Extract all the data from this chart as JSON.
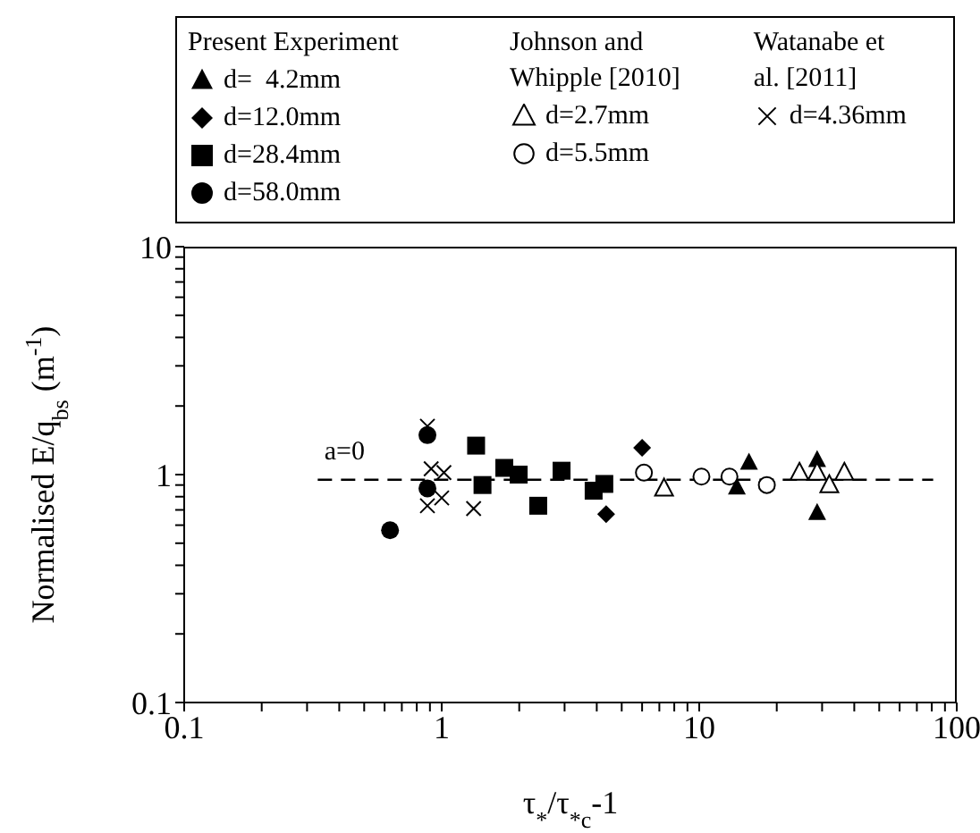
{
  "chart_data": {
    "type": "scatter",
    "xlabel": "τ$_{*}$/τ$_{*c}$-1",
    "ylabel": "Normalised E/q$_{bs}$ (m$^{-1}$)",
    "log": "xy",
    "legend": "top",
    "xlim": [
      0.1,
      100
    ],
    "ylim": [
      0.1,
      10
    ],
    "xticks": [
      0.1,
      {
        "value": 0.2,
        "label": null
      },
      {
        "value": 0.3,
        "label": null
      },
      {
        "value": 0.4,
        "label": null
      },
      {
        "value": 0.5,
        "label": null
      },
      {
        "value": 0.6,
        "label": null
      },
      {
        "value": 0.7,
        "label": null
      },
      {
        "value": 0.8,
        "label": null
      },
      {
        "value": 0.9,
        "label": null
      },
      1,
      {
        "value": 2,
        "label": null
      },
      {
        "value": 3,
        "label": null
      },
      {
        "value": 4,
        "label": null
      },
      {
        "value": 5,
        "label": null
      },
      {
        "value": 6,
        "label": null
      },
      {
        "value": 7,
        "label": null
      },
      {
        "value": 8,
        "label": null
      },
      {
        "value": 9,
        "label": null
      },
      10,
      {
        "value": 20,
        "label": null
      },
      {
        "value": 30,
        "label": null
      },
      {
        "value": 40,
        "label": null
      },
      {
        "value": 50,
        "label": null
      },
      {
        "value": 60,
        "label": null
      },
      {
        "value": 70,
        "label": null
      },
      {
        "value": 80,
        "label": null
      },
      {
        "value": 90,
        "label": null
      },
      100
    ],
    "yticks": [
      0.1,
      {
        "value": 0.2,
        "label": null
      },
      {
        "value": 0.3,
        "label": null
      },
      {
        "value": 0.4,
        "label": null
      },
      {
        "value": 0.5,
        "label": null
      },
      {
        "value": 0.6,
        "label": null
      },
      {
        "value": 0.7,
        "label": null
      },
      {
        "value": 0.8,
        "label": null
      },
      {
        "value": 0.9,
        "label": null
      },
      1,
      {
        "value": 2,
        "label": null
      },
      {
        "value": 3,
        "label": null
      },
      {
        "value": 4,
        "label": null
      },
      {
        "value": 5,
        "label": null
      },
      {
        "value": 6,
        "label": null
      },
      {
        "value": 7,
        "label": null
      },
      {
        "value": 8,
        "label": null
      },
      {
        "value": 9,
        "label": null
      },
      10
    ],
    "annotations": [
      "Present Experiment",
      "Johnson and Whipple [2010]",
      "Watanabe et al. [2011]",
      {
        "text": "a=0",
        "x": 0.35,
        "y": 0.95
      }
    ],
    "series": [
      {
        "name": "d=  4.2mm",
        "color": "#000000",
        "marker": "triangle",
        "x": [
          15.6,
          14.0,
          28.7,
          28.7
        ],
        "values": [
          1.13,
          0.88,
          1.16,
          0.68
        ]
      },
      {
        "name": "d=12.0mm",
        "color": "#000000",
        "marker": "diamond",
        "x": [
          4.35,
          6.0
        ],
        "values": [
          0.67,
          1.31
        ]
      },
      {
        "name": "d=28.4mm",
        "color": "#000000",
        "marker": "square",
        "x": [
          1.36,
          1.44,
          1.75,
          1.99,
          2.37,
          2.92,
          3.89,
          4.28
        ],
        "values": [
          1.34,
          0.9,
          1.07,
          1.0,
          0.73,
          1.04,
          0.85,
          0.91
        ]
      },
      {
        "name": "d=58.0mm",
        "color": "#000000",
        "marker": "circle",
        "x": [
          0.88,
          0.88,
          0.63
        ],
        "values": [
          1.49,
          0.87,
          0.57
        ]
      },
      {
        "name": "d=2.7mm",
        "color": "#000000",
        "marker": "triangle-open",
        "x": [
          7.3,
          24.5,
          28.7,
          32,
          36.6
        ],
        "values": [
          0.87,
          1.02,
          1.02,
          0.9,
          1.02
        ]
      },
      {
        "name": "d=5.5mm",
        "color": "#000000",
        "marker": "circle-open",
        "x": [
          6.1,
          10.2,
          13.1,
          18.3
        ],
        "values": [
          1.02,
          0.98,
          0.98,
          0.9
        ]
      },
      {
        "name": "d=4.36mm",
        "color": "#000000",
        "marker": "cross",
        "x": [
          0.88,
          0.91,
          1.02,
          0.88,
          1.0,
          1.33
        ],
        "values": [
          1.63,
          1.06,
          1.02,
          0.73,
          0.79,
          0.71
        ]
      },
      {
        "type": "line",
        "color": "#000000",
        "line_style": "dashed",
        "marker": "none",
        "x": [
          0.33,
          81
        ],
        "values": [
          0.95,
          0.95
        ]
      }
    ]
  }
}
